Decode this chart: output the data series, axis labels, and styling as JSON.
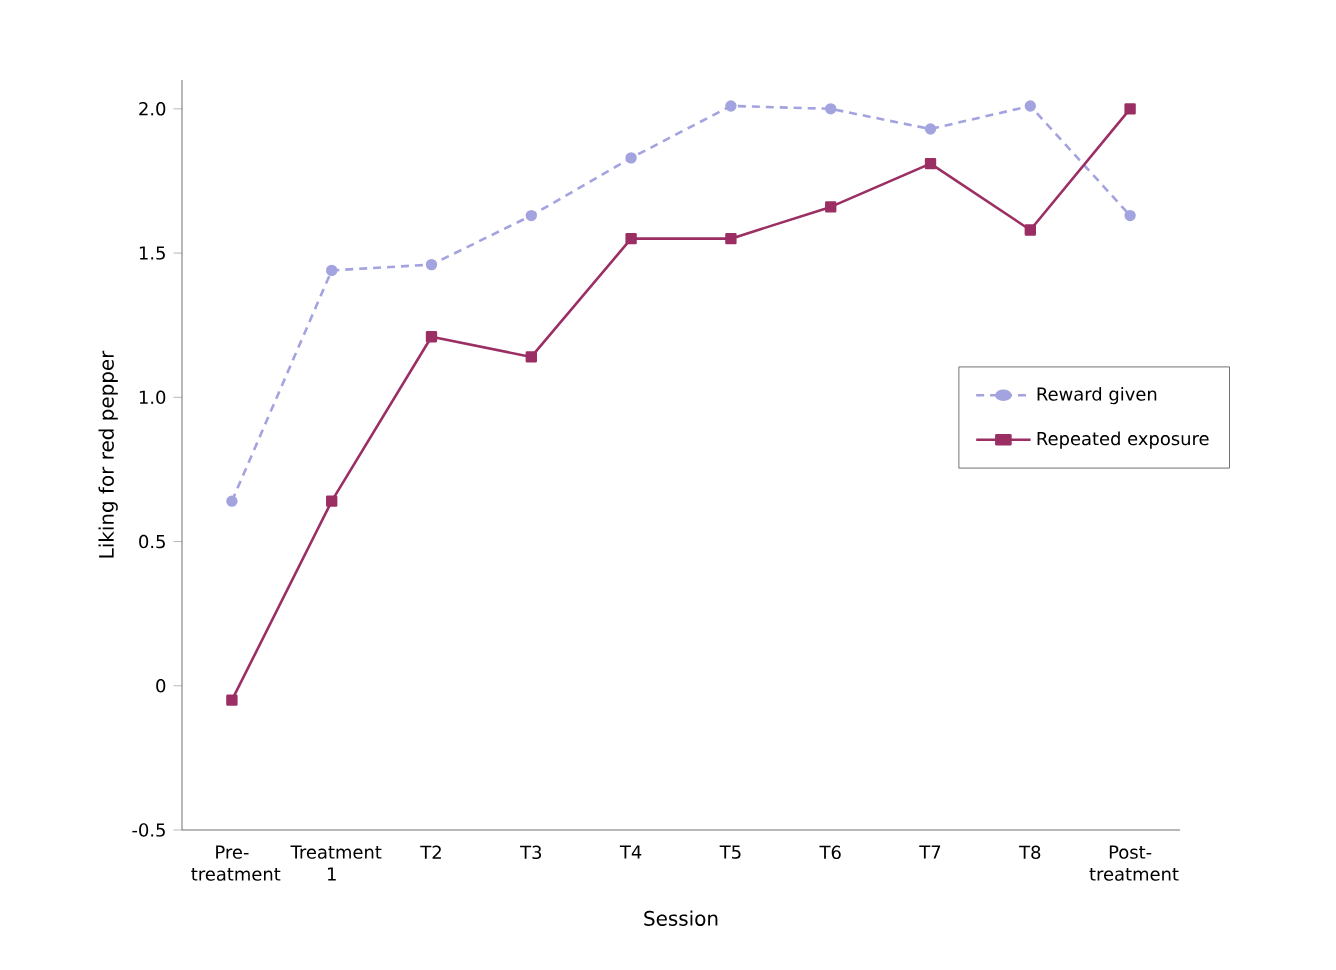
{
  "chart_data": {
    "type": "line",
    "xlabel": "Session",
    "ylabel": "Liking for red pepper",
    "categories": [
      "Pre-treatment",
      "Treatment 1",
      "T2",
      "T3",
      "T4",
      "T5",
      "T6",
      "T7",
      "T8",
      "Post-treatment"
    ],
    "series": [
      {
        "name": "Reward given",
        "color": "#a3a3e0",
        "marker": "circle",
        "line_style": "dashed",
        "values": [
          0.64,
          1.44,
          1.46,
          1.63,
          1.83,
          2.01,
          2.0,
          1.93,
          2.01,
          1.63
        ]
      },
      {
        "name": "Repeated exposure",
        "color": "#9b2e63",
        "marker": "square",
        "line_style": "solid",
        "values": [
          -0.05,
          0.64,
          1.21,
          1.14,
          1.55,
          1.55,
          1.66,
          1.81,
          1.58,
          2.0
        ]
      }
    ],
    "ylim": [
      -0.5,
      2.1
    ],
    "yticks": [
      {
        "value": -0.5,
        "label": "-0.5"
      },
      0,
      {
        "value": 0.5,
        "label": "0.5"
      },
      {
        "value": 1.0,
        "label": "1.0"
      },
      {
        "value": 1.5,
        "label": "1.5"
      },
      {
        "value": 2.0,
        "label": "2.0"
      }
    ],
    "legend": "right",
    "grid": false
  }
}
